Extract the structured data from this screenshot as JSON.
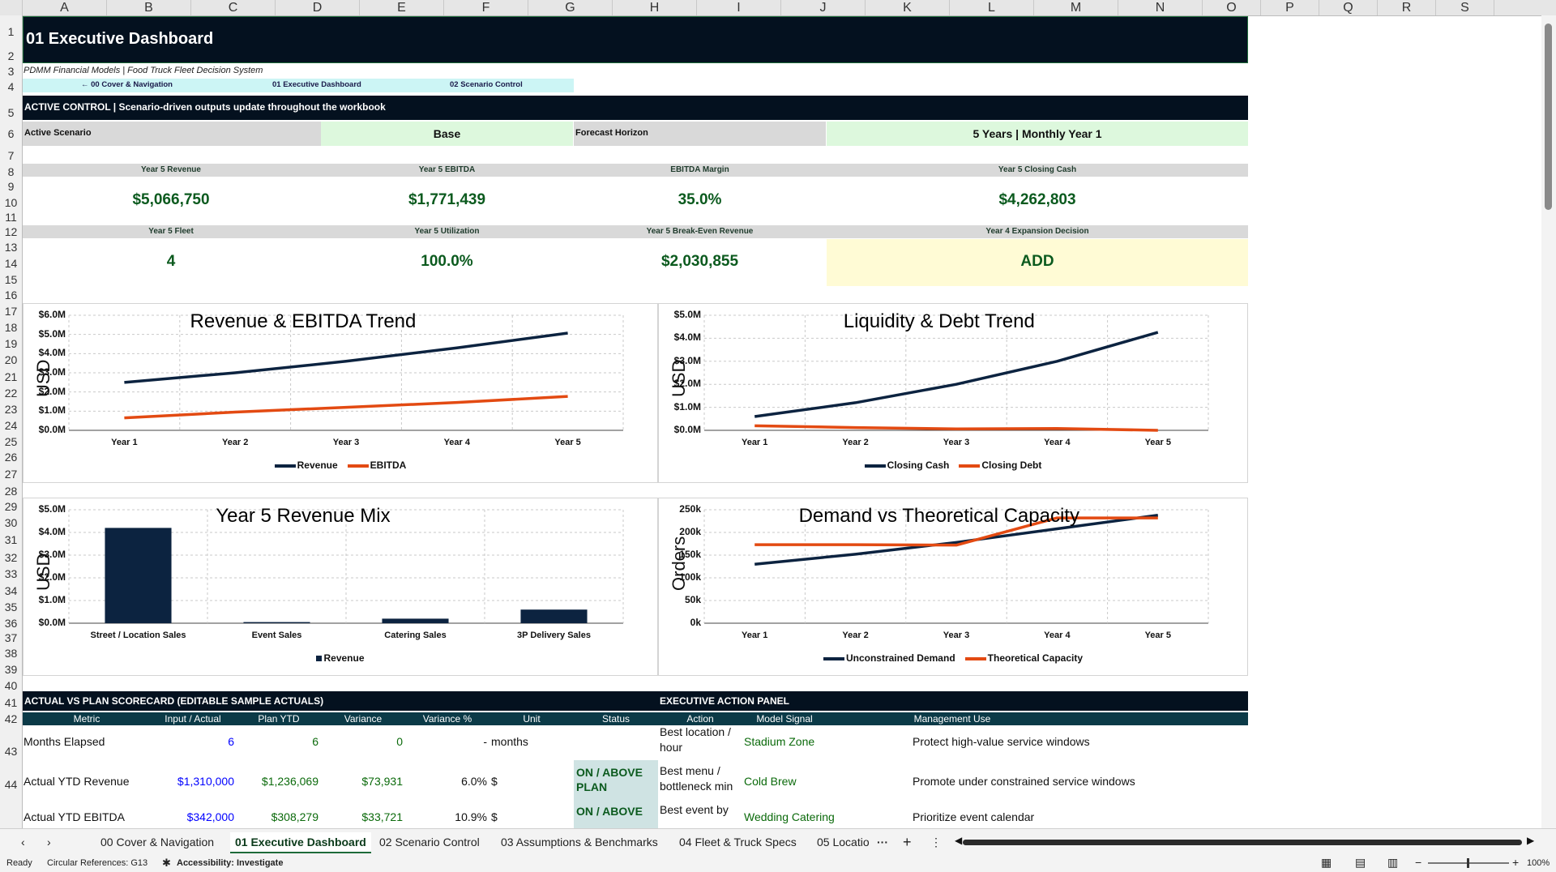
{
  "columns": [
    "A",
    "B",
    "C",
    "D",
    "E",
    "F",
    "G",
    "H",
    "I",
    "J",
    "K",
    "L",
    "M",
    "N",
    "O",
    "P",
    "Q",
    "R",
    "S"
  ],
  "rows": [
    "1",
    "2",
    "3",
    "4",
    "5",
    "6",
    "7",
    "8",
    "9",
    "10",
    "11",
    "12",
    "13",
    "14",
    "15",
    "16",
    "17",
    "18",
    "19",
    "20",
    "21",
    "22",
    "23",
    "24",
    "25",
    "26",
    "27",
    "28",
    "29",
    "30",
    "31",
    "32",
    "33",
    "34",
    "35",
    "36",
    "37",
    "38",
    "39",
    "40",
    "41",
    "42",
    "43",
    "44"
  ],
  "title": "01 Executive Dashboard",
  "subtitle": "PDMM Financial Models | Food Truck Fleet Decision System",
  "nav": {
    "cover": "← 00 Cover & Navigation",
    "exec": "01 Executive Dashboard",
    "scenario": "02 Scenario Control"
  },
  "active_control": "ACTIVE CONTROL | Scenario-driven outputs update throughout the workbook",
  "scenario": {
    "label": "Active Scenario",
    "value": "Base",
    "horizon_label": "Forecast Horizon",
    "horizon_value": "5 Years | Monthly Year 1"
  },
  "kpis_row1": [
    {
      "label": "Year 5 Revenue",
      "value": "$5,066,750"
    },
    {
      "label": "Year 5 EBITDA",
      "value": "$1,771,439"
    },
    {
      "label": "EBITDA Margin",
      "value": "35.0%"
    },
    {
      "label": "Year 5 Closing Cash",
      "value": "$4,262,803"
    }
  ],
  "kpis_row2": [
    {
      "label": "Year 5 Fleet",
      "value": "4"
    },
    {
      "label": "Year 5 Utilization",
      "value": "100.0%"
    },
    {
      "label": "Year 5 Break-Even Revenue",
      "value": "$2,030,855"
    },
    {
      "label": "Year 4 Expansion Decision",
      "value": "ADD"
    }
  ],
  "chart_data": [
    {
      "type": "line",
      "title": "Revenue & EBITDA Trend",
      "ylabel": "USD",
      "x": [
        "Year 1",
        "Year 2",
        "Year 3",
        "Year 4",
        "Year 5"
      ],
      "yticks": [
        "$0.0M",
        "$1.0M",
        "$2.0M",
        "$3.0M",
        "$4.0M",
        "$5.0M",
        "$6.0M"
      ],
      "ylim": [
        0,
        6
      ],
      "series": [
        {
          "name": "Revenue",
          "color": "#0c2340",
          "values": [
            2.5,
            3.0,
            3.6,
            4.3,
            5.07
          ]
        },
        {
          "name": "EBITDA",
          "color": "#e34a12",
          "values": [
            0.65,
            0.95,
            1.2,
            1.45,
            1.77
          ]
        }
      ]
    },
    {
      "type": "line",
      "title": "Liquidity & Debt Trend",
      "ylabel": "USD",
      "x": [
        "Year 1",
        "Year 2",
        "Year 3",
        "Year 4",
        "Year 5"
      ],
      "yticks": [
        "$0.0M",
        "$1.0M",
        "$2.0M",
        "$3.0M",
        "$4.0M",
        "$5.0M"
      ],
      "ylim": [
        0,
        5
      ],
      "series": [
        {
          "name": "Closing Cash",
          "color": "#0c2340",
          "values": [
            0.6,
            1.2,
            2.0,
            3.0,
            4.26
          ]
        },
        {
          "name": "Closing Debt",
          "color": "#e34a12",
          "values": [
            0.2,
            0.12,
            0.06,
            0.08,
            0.0
          ]
        }
      ]
    },
    {
      "type": "bar",
      "title": "Year 5 Revenue Mix",
      "ylabel": "USD",
      "categories": [
        "Street / Location Sales",
        "Event Sales",
        "Catering Sales",
        "3P Delivery Sales"
      ],
      "yticks": [
        "$0.0M",
        "$1.0M",
        "$2.0M",
        "$3.0M",
        "$4.0M",
        "$5.0M"
      ],
      "ylim": [
        0,
        5
      ],
      "series": [
        {
          "name": "Revenue",
          "color": "#0c2340",
          "values": [
            4.2,
            0.05,
            0.2,
            0.6
          ]
        }
      ]
    },
    {
      "type": "line",
      "title": "Demand vs Theoretical Capacity",
      "ylabel": "Orders",
      "x": [
        "Year 1",
        "Year 2",
        "Year 3",
        "Year 4",
        "Year 5"
      ],
      "yticks": [
        "0k",
        "50k",
        "100k",
        "150k",
        "200k",
        "250k"
      ],
      "ylim": [
        0,
        250
      ],
      "series": [
        {
          "name": "Unconstrained Demand",
          "color": "#0c2340",
          "values": [
            130,
            152,
            178,
            208,
            238
          ]
        },
        {
          "name": "Theoretical Capacity",
          "color": "#e34a12",
          "values": [
            173,
            173,
            172,
            232,
            232
          ]
        }
      ]
    }
  ],
  "scorecard": {
    "title": "ACTUAL VS PLAN SCORECARD (EDITABLE SAMPLE ACTUALS)",
    "headers": [
      "Metric",
      "Input / Actual",
      "Plan YTD",
      "Variance",
      "Variance %",
      "Unit",
      "Status"
    ],
    "rows": [
      {
        "metric": "Months Elapsed",
        "actual": "6",
        "plan": "6",
        "variance": "0",
        "pct": "-",
        "unit": "months",
        "status": ""
      },
      {
        "metric": "Actual YTD Revenue",
        "actual": "$1,310,000",
        "plan": "$1,236,069",
        "variance": "$73,931",
        "pct": "6.0%",
        "unit": "$",
        "status": "ON / ABOVE PLAN"
      },
      {
        "metric": "Actual YTD EBITDA",
        "actual": "$342,000",
        "plan": "$308,279",
        "variance": "$33,721",
        "pct": "10.9%",
        "unit": "$",
        "status": "ON / ABOVE"
      }
    ]
  },
  "action_panel": {
    "title": "EXECUTIVE ACTION PANEL",
    "headers": [
      "Action",
      "Model Signal",
      "Management Use"
    ],
    "rows": [
      {
        "action": "Best location / hour",
        "signal": "Stadium Zone",
        "use": "Protect high-value service windows"
      },
      {
        "action": "Best menu / bottleneck min",
        "signal": "Cold Brew",
        "use": "Promote under constrained service windows"
      },
      {
        "action": "Best event by",
        "signal": "Wedding Catering",
        "use": "Prioritize event calendar"
      }
    ]
  },
  "tabs": [
    "00 Cover & Navigation",
    "01 Executive Dashboard",
    "02 Scenario Control",
    "03 Assumptions & Benchmarks",
    "04 Fleet & Truck Specs",
    "05 Locatio"
  ],
  "status": {
    "ready": "Ready",
    "circular": "Circular References: G13",
    "accessibility": "Accessibility: Investigate",
    "zoom": "100%"
  }
}
